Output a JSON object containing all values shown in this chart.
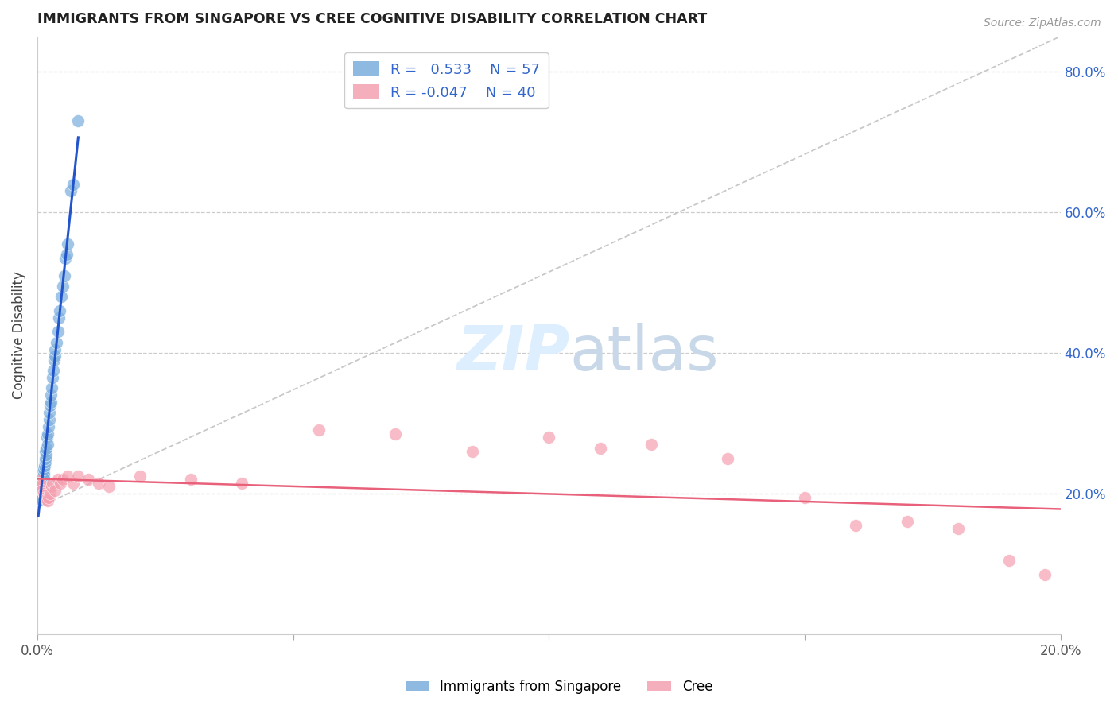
{
  "title": "IMMIGRANTS FROM SINGAPORE VS CREE COGNITIVE DISABILITY CORRELATION CHART",
  "source": "Source: ZipAtlas.com",
  "ylabel": "Cognitive Disability",
  "xlim": [
    0.0,
    0.2
  ],
  "ylim": [
    0.0,
    0.85
  ],
  "right_yticks": [
    0.2,
    0.4,
    0.6,
    0.8
  ],
  "right_yticklabels": [
    "20.0%",
    "40.0%",
    "60.0%",
    "80.0%"
  ],
  "xtick_positions": [
    0.0,
    0.05,
    0.1,
    0.15,
    0.2
  ],
  "xtick_labels": [
    "0.0%",
    "",
    "",
    "",
    "20.0%"
  ],
  "series1_color": "#7aaddc",
  "series2_color": "#f4a0b0",
  "reg1_color": "#2255cc",
  "reg2_color": "#e8607a",
  "diag_color": "#bbbbbb",
  "background": "#ffffff",
  "grid_color": "#cccccc",
  "title_color": "#222222",
  "axis_label_color": "#444444",
  "right_tick_color": "#3366cc",
  "watermark_color": "#ddeeff",
  "series1_x": [
    0.0002,
    0.0003,
    0.0003,
    0.0004,
    0.0005,
    0.0005,
    0.0006,
    0.0006,
    0.0007,
    0.0007,
    0.0008,
    0.0008,
    0.0009,
    0.0009,
    0.001,
    0.001,
    0.001,
    0.0011,
    0.0011,
    0.0012,
    0.0012,
    0.0013,
    0.0013,
    0.0014,
    0.0015,
    0.0015,
    0.0016,
    0.0017,
    0.0018,
    0.0019,
    0.002,
    0.0021,
    0.0022,
    0.0023,
    0.0024,
    0.0025,
    0.0026,
    0.0027,
    0.0028,
    0.003,
    0.0032,
    0.0033,
    0.0034,
    0.0035,
    0.0038,
    0.004,
    0.0042,
    0.0044,
    0.0047,
    0.005,
    0.0053,
    0.0055,
    0.0058,
    0.006,
    0.0065,
    0.007,
    0.008
  ],
  "series1_y": [
    0.195,
    0.198,
    0.2,
    0.202,
    0.205,
    0.21,
    0.195,
    0.215,
    0.192,
    0.218,
    0.22,
    0.215,
    0.205,
    0.225,
    0.21,
    0.22,
    0.23,
    0.215,
    0.225,
    0.22,
    0.225,
    0.23,
    0.235,
    0.24,
    0.245,
    0.25,
    0.26,
    0.255,
    0.265,
    0.28,
    0.27,
    0.285,
    0.295,
    0.305,
    0.315,
    0.325,
    0.33,
    0.34,
    0.35,
    0.365,
    0.375,
    0.39,
    0.395,
    0.405,
    0.415,
    0.43,
    0.45,
    0.46,
    0.48,
    0.495,
    0.51,
    0.535,
    0.54,
    0.555,
    0.63,
    0.64,
    0.73
  ],
  "series2_x": [
    0.0002,
    0.0004,
    0.0006,
    0.0008,
    0.001,
    0.0012,
    0.0014,
    0.0016,
    0.0018,
    0.002,
    0.0022,
    0.0025,
    0.0028,
    0.003,
    0.0035,
    0.004,
    0.0045,
    0.005,
    0.006,
    0.007,
    0.008,
    0.01,
    0.012,
    0.014,
    0.02,
    0.03,
    0.04,
    0.055,
    0.07,
    0.085,
    0.1,
    0.11,
    0.12,
    0.135,
    0.15,
    0.16,
    0.17,
    0.18,
    0.19,
    0.197
  ],
  "series2_y": [
    0.218,
    0.215,
    0.21,
    0.212,
    0.205,
    0.2,
    0.198,
    0.195,
    0.192,
    0.19,
    0.195,
    0.2,
    0.21,
    0.215,
    0.205,
    0.22,
    0.215,
    0.22,
    0.225,
    0.215,
    0.225,
    0.22,
    0.215,
    0.21,
    0.225,
    0.22,
    0.215,
    0.29,
    0.285,
    0.26,
    0.28,
    0.265,
    0.27,
    0.25,
    0.195,
    0.155,
    0.16,
    0.15,
    0.105,
    0.085
  ]
}
